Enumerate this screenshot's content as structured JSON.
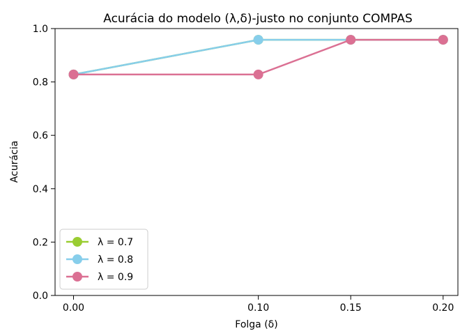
{
  "chart_data": {
    "type": "line",
    "title": "Acurácia do modelo (λ,δ)-justo no conjunto COMPAS",
    "xlabel": "Folga (δ)",
    "ylabel": "Acurácia",
    "x": [
      0.0,
      0.1,
      0.15,
      0.2
    ],
    "x_tick_labels": [
      "0.00",
      "0.10",
      "0.15",
      "0.20"
    ],
    "xlim": [
      -0.01,
      0.208
    ],
    "ylim": [
      0.0,
      1.0
    ],
    "y_ticks": [
      0.0,
      0.2,
      0.4,
      0.6,
      0.8,
      1.0
    ],
    "y_tick_labels": [
      "0.0",
      "0.2",
      "0.4",
      "0.6",
      "0.8",
      "1.0"
    ],
    "grid": false,
    "legend_position": "lower-left",
    "series": [
      {
        "name": "λ = 0.7",
        "color": "#9acd32",
        "marker": "circle",
        "values": [
          0.828,
          0.958,
          0.958,
          0.958
        ]
      },
      {
        "name": "λ = 0.8",
        "color": "#87ceeb",
        "marker": "circle",
        "values": [
          0.828,
          0.958,
          0.958,
          0.958
        ]
      },
      {
        "name": "λ = 0.9",
        "color": "#db7093",
        "marker": "circle",
        "values": [
          0.828,
          0.828,
          0.958,
          0.958
        ]
      }
    ]
  }
}
